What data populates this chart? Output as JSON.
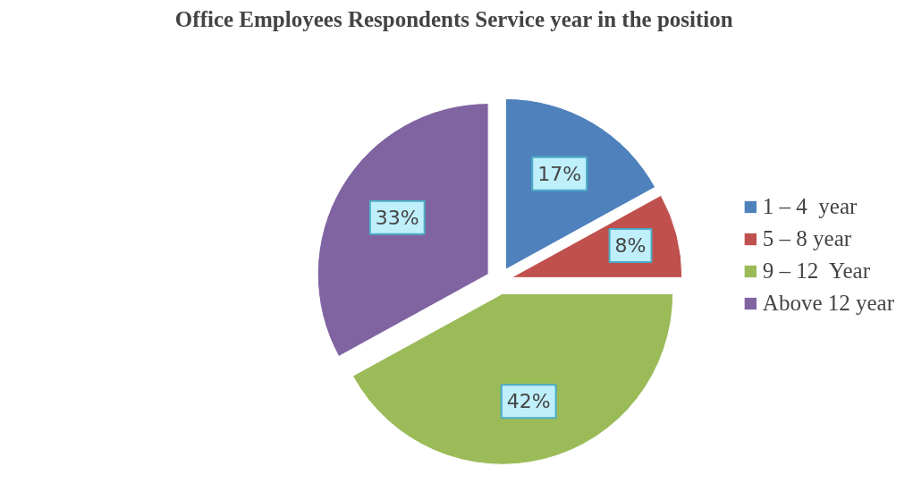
{
  "chart_data": {
    "type": "pie",
    "title": "Office Employees Respondents Service year in the position",
    "categories": [
      "1 – 4  year",
      "5 – 8 year",
      "9 – 12  Year",
      "Above 12 year"
    ],
    "values": [
      17,
      8,
      42,
      33
    ],
    "colors": [
      "#4f81bd",
      "#c0504d",
      "#9bbb59",
      "#8064a2"
    ],
    "value_labels": [
      "17%",
      "8%",
      "42%",
      "33%"
    ],
    "legend": "right"
  }
}
